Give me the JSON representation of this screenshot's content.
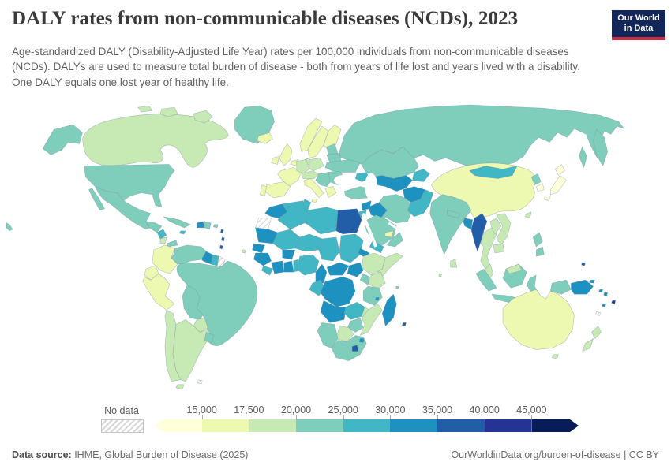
{
  "header": {
    "title": "DALY rates from non-communicable diseases (NCDs), 2023",
    "subtitle": "Age-standardized DALY (Disability-Adjusted Life Year) rates per 100,000 individuals from non-communicable diseases (NCDs). DALYs are used to measure total burden of disease - both from years of life lost and years lived with a disability. One DALY equals one lost year of healthy life.",
    "logo": {
      "line1": "Our World",
      "line2": "in Data"
    }
  },
  "legend": {
    "no_data_label": "No data",
    "ticks": [
      "15,000",
      "17,500",
      "20,000",
      "25,000",
      "30,000",
      "35,000",
      "40,000",
      "45,000"
    ],
    "colors": [
      "#ffffd9",
      "#edf8b1",
      "#c7e9b4",
      "#7fcdbb",
      "#41b6c4",
      "#1d91c0",
      "#225ea8",
      "#253494",
      "#081d58"
    ]
  },
  "footer": {
    "source_label": "Data source:",
    "source_text": " IHME, Global Burden of Disease (2025)",
    "right_text": "OurWorldinData.org/burden-of-disease | CC BY"
  },
  "chart_data": {
    "type": "choropleth",
    "title": "DALY rates from non-communicable diseases (NCDs), 2023",
    "unit": "Age-standardized DALYs per 100,000 individuals",
    "legend_position": "bottom",
    "bins": [
      {
        "label": "< 15,000",
        "color": "#ffffd9"
      },
      {
        "label": "15,000 - 17,500",
        "color": "#edf8b1"
      },
      {
        "label": "17,500 - 20,000",
        "color": "#c7e9b4"
      },
      {
        "label": "20,000 - 25,000",
        "color": "#7fcdbb"
      },
      {
        "label": "25,000 - 30,000",
        "color": "#41b6c4"
      },
      {
        "label": "30,000 - 35,000",
        "color": "#1d91c0"
      },
      {
        "label": "35,000 - 40,000",
        "color": "#225ea8"
      },
      {
        "label": "40,000 - 45,000",
        "color": "#253494"
      },
      {
        "label": "> 45,000",
        "color": "#081d58"
      }
    ],
    "regions": {
      "greenland": {
        "name": "Greenland",
        "bin": 3
      },
      "canada": {
        "name": "Canada",
        "bin": 2
      },
      "united_states": {
        "name": "United States",
        "bin": 3
      },
      "alaska": {
        "name": "United States (Alaska)",
        "bin": 3
      },
      "hawaii": {
        "name": "United States (Hawaii)",
        "bin": 3
      },
      "mexico": {
        "name": "Mexico",
        "bin": 3
      },
      "guatemala_honduras": {
        "name": "Guatemala / Honduras",
        "bin": 3
      },
      "nicaragua": {
        "name": "Nicaragua",
        "bin": 4
      },
      "costa_rica": {
        "name": "Costa Rica",
        "bin": 2
      },
      "panama": {
        "name": "Panama",
        "bin": 3
      },
      "cuba": {
        "name": "Cuba",
        "bin": 3
      },
      "haiti": {
        "name": "Haiti",
        "bin": 5
      },
      "dominican_republic": {
        "name": "Dominican Republic",
        "bin": 3
      },
      "jamaica": {
        "name": "Jamaica",
        "bin": 4
      },
      "puerto_rico": {
        "name": "Puerto Rico",
        "bin": 3
      },
      "lesser_antilles": {
        "name": "Lesser Antilles",
        "bin": 6
      },
      "colombia": {
        "name": "Colombia",
        "bin": 1
      },
      "ecuador": {
        "name": "Ecuador",
        "bin": 1
      },
      "peru": {
        "name": "Peru",
        "bin": 1
      },
      "venezuela": {
        "name": "Venezuela",
        "bin": 3
      },
      "guyana": {
        "name": "Guyana",
        "bin": 5
      },
      "suriname": {
        "name": "Suriname",
        "bin": 4
      },
      "french_guiana": {
        "name": "French Guiana",
        "bin": null
      },
      "brazil": {
        "name": "Brazil",
        "bin": 3
      },
      "bolivia": {
        "name": "Bolivia",
        "bin": 3
      },
      "paraguay": {
        "name": "Paraguay",
        "bin": 2
      },
      "chile": {
        "name": "Chile",
        "bin": 2
      },
      "argentina": {
        "name": "Argentina",
        "bin": 2
      },
      "uruguay": {
        "name": "Uruguay",
        "bin": 3
      },
      "falkland_islands": {
        "name": "Falkland Islands",
        "bin": null
      },
      "iceland": {
        "name": "Iceland",
        "bin": 1
      },
      "norway": {
        "name": "Norway",
        "bin": 1
      },
      "sweden": {
        "name": "Sweden",
        "bin": 1
      },
      "finland": {
        "name": "Finland",
        "bin": 1
      },
      "denmark": {
        "name": "Denmark",
        "bin": 2
      },
      "united_kingdom": {
        "name": "United Kingdom",
        "bin": 1
      },
      "ireland": {
        "name": "Ireland",
        "bin": 1
      },
      "france": {
        "name": "France",
        "bin": 1
      },
      "spain": {
        "name": "Spain",
        "bin": 1
      },
      "portugal": {
        "name": "Portugal",
        "bin": 1
      },
      "benelux": {
        "name": "Belgium / Netherlands",
        "bin": 1
      },
      "germany": {
        "name": "Germany",
        "bin": 2
      },
      "poland": {
        "name": "Poland",
        "bin": 2
      },
      "czech_austria": {
        "name": "Czechia / Austria",
        "bin": 2
      },
      "italy": {
        "name": "Italy",
        "bin": 1
      },
      "balkans": {
        "name": "Western Balkans / Hungary",
        "bin": 3
      },
      "greece": {
        "name": "Greece",
        "bin": 1
      },
      "romania_bulgaria": {
        "name": "Romania / Bulgaria",
        "bin": 3
      },
      "ukraine": {
        "name": "Ukraine",
        "bin": 3
      },
      "belarus": {
        "name": "Belarus",
        "bin": 3
      },
      "baltics": {
        "name": "Baltic states",
        "bin": 3
      },
      "russia": {
        "name": "Russia",
        "bin": 3
      },
      "kazakhstan": {
        "name": "Kazakhstan",
        "bin": 3
      },
      "uzbek_turkmen": {
        "name": "Uzbekistan / Turkmenistan",
        "bin": 5
      },
      "kyrgyz_tajik": {
        "name": "Kyrgyzstan / Tajikistan",
        "bin": 4
      },
      "caucasus": {
        "name": "Caucasus",
        "bin": 4
      },
      "turkey": {
        "name": "Turkey",
        "bin": 3
      },
      "syria": {
        "name": "Syria",
        "bin": 5
      },
      "iraq": {
        "name": "Iraq",
        "bin": 5
      },
      "jordan_israel": {
        "name": "Jordan / Israel",
        "bin": 4
      },
      "iran": {
        "name": "Iran",
        "bin": 3
      },
      "saudi_arabia": {
        "name": "Saudi Arabia",
        "bin": 3
      },
      "yemen": {
        "name": "Yemen",
        "bin": 4
      },
      "oman": {
        "name": "Oman",
        "bin": 3
      },
      "uae_qatar": {
        "name": "United Arab Emirates / Qatar",
        "bin": 1
      },
      "afghanistan": {
        "name": "Afghanistan",
        "bin": 5
      },
      "pakistan": {
        "name": "Pakistan",
        "bin": 4
      },
      "india": {
        "name": "India",
        "bin": 3
      },
      "nepal": {
        "name": "Nepal",
        "bin": 3
      },
      "bangladesh": {
        "name": "Bangladesh",
        "bin": 5
      },
      "sri_lanka": {
        "name": "Sri Lanka",
        "bin": 2
      },
      "myanmar": {
        "name": "Myanmar",
        "bin": 6
      },
      "thailand": {
        "name": "Thailand",
        "bin": 2
      },
      "laos": {
        "name": "Laos",
        "bin": 2
      },
      "vietnam": {
        "name": "Vietnam",
        "bin": 2
      },
      "cambodia": {
        "name": "Cambodia",
        "bin": 2
      },
      "malaysia": {
        "name": "Malaysia",
        "bin": 2
      },
      "malaysia_borneo": {
        "name": "Malaysia (Borneo)",
        "bin": 2
      },
      "indonesia": {
        "name": "Indonesia",
        "bin": 3
      },
      "philippines": {
        "name": "Philippines",
        "bin": 3
      },
      "papua_new_guinea": {
        "name": "Papua New Guinea",
        "bin": 5
      },
      "solomon_islands": {
        "name": "Solomon Islands",
        "bin": 5
      },
      "vanuatu": {
        "name": "Vanuatu",
        "bin": 5
      },
      "fiji": {
        "name": "Fiji",
        "bin": 7
      },
      "new_caledonia": {
        "name": "New Caledonia",
        "bin": null
      },
      "micronesia": {
        "name": "Micronesia",
        "bin": 6
      },
      "china": {
        "name": "China",
        "bin": 1
      },
      "mongolia": {
        "name": "Mongolia",
        "bin": 4
      },
      "north_korea": {
        "name": "North Korea",
        "bin": 3
      },
      "south_korea": {
        "name": "South Korea",
        "bin": 0
      },
      "japan": {
        "name": "Japan",
        "bin": 0
      },
      "taiwan": {
        "name": "Taiwan",
        "bin": 2
      },
      "australia": {
        "name": "Australia",
        "bin": 1
      },
      "tasmania": {
        "name": "Australia (Tasmania)",
        "bin": 2
      },
      "new_zealand": {
        "name": "New Zealand",
        "bin": 2
      },
      "morocco": {
        "name": "Morocco",
        "bin": 5
      },
      "western_sahara": {
        "name": "Western Sahara",
        "bin": null
      },
      "algeria": {
        "name": "Algeria",
        "bin": 4
      },
      "tunisia": {
        "name": "Tunisia",
        "bin": 4
      },
      "libya": {
        "name": "Libya",
        "bin": 4
      },
      "egypt": {
        "name": "Egypt",
        "bin": 6
      },
      "mauritania": {
        "name": "Mauritania",
        "bin": 5
      },
      "mali": {
        "name": "Mali",
        "bin": 4
      },
      "niger": {
        "name": "Niger",
        "bin": 4
      },
      "chad": {
        "name": "Chad",
        "bin": 4
      },
      "sudan": {
        "name": "Sudan",
        "bin": 4
      },
      "eritrea_djibouti": {
        "name": "Eritrea / Djibouti",
        "bin": 5
      },
      "senegal": {
        "name": "Senegal / Gambia",
        "bin": 5
      },
      "guinea_group": {
        "name": "Guinea / Guinea-Bissau",
        "bin": 5
      },
      "sierra_leone_liberia": {
        "name": "Sierra Leone / Liberia",
        "bin": 4
      },
      "cote_divoire": {
        "name": "Cote d'Ivoire",
        "bin": 5
      },
      "ghana": {
        "name": "Ghana",
        "bin": 5
      },
      "burkina_faso": {
        "name": "Burkina Faso",
        "bin": 5
      },
      "togo_benin": {
        "name": "Togo / Benin",
        "bin": 4
      },
      "nigeria": {
        "name": "Nigeria",
        "bin": 4
      },
      "cameroon": {
        "name": "Cameroon",
        "bin": 5
      },
      "central_african_republic": {
        "name": "Central African Republic",
        "bin": 5
      },
      "south_sudan": {
        "name": "South Sudan",
        "bin": 5
      },
      "ethiopia": {
        "name": "Ethiopia",
        "bin": 2
      },
      "somalia": {
        "name": "Somalia",
        "bin": 2
      },
      "kenya": {
        "name": "Kenya",
        "bin": 2
      },
      "uganda": {
        "name": "Uganda",
        "bin": 3
      },
      "gabon_congo": {
        "name": "Gabon / Congo",
        "bin": 4
      },
      "drc": {
        "name": "Democratic Republic of Congo",
        "bin": 5
      },
      "tanzania": {
        "name": "Tanzania",
        "bin": 3
      },
      "angola": {
        "name": "Angola",
        "bin": 5
      },
      "zambia": {
        "name": "Zambia",
        "bin": 4
      },
      "malawi": {
        "name": "Malawi",
        "bin": 2
      },
      "mozambique": {
        "name": "Mozambique",
        "bin": 2
      },
      "zimbabwe": {
        "name": "Zimbabwe",
        "bin": 3
      },
      "botswana": {
        "name": "Botswana",
        "bin": 2
      },
      "namibia": {
        "name": "Namibia",
        "bin": 3
      },
      "south_africa": {
        "name": "South Africa",
        "bin": 3
      },
      "lesotho": {
        "name": "Lesotho",
        "bin": 6
      },
      "eswatini": {
        "name": "Eswatini",
        "bin": 5
      },
      "madagascar": {
        "name": "Madagascar",
        "bin": 5
      },
      "comoros": {
        "name": "Comoros",
        "bin": 5
      },
      "mauritius": {
        "name": "Mauritius",
        "bin": 6
      },
      "cape_verde": {
        "name": "Cape Verde",
        "bin": 2
      },
      "seychelles": {
        "name": "Seychelles",
        "bin": 3
      },
      "maldives": {
        "name": "Maldives",
        "bin": 2
      }
    }
  }
}
